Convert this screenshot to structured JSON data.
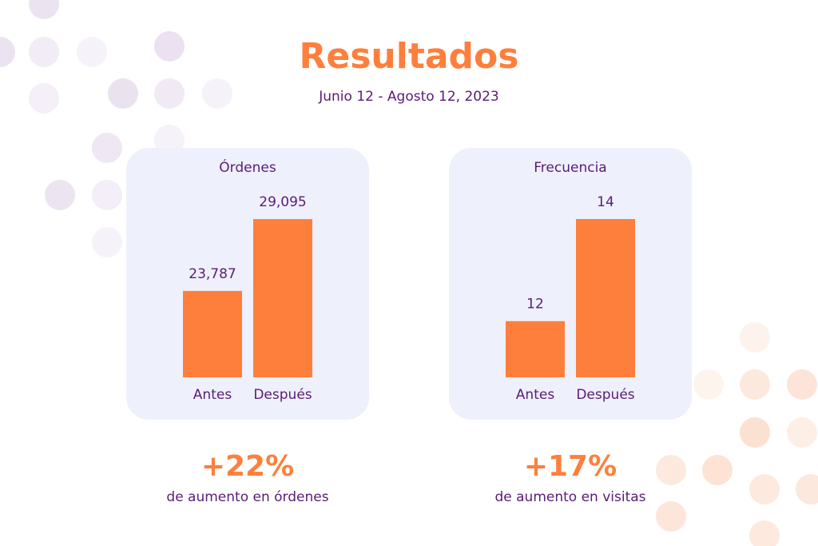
{
  "header": {
    "title": "Resultados",
    "subtitle": "Junio 12 - Agosto 12, 2023"
  },
  "chart_data": [
    {
      "type": "bar",
      "title": "Órdenes",
      "categories": [
        "Antes",
        "Después"
      ],
      "values": [
        23787,
        29095
      ],
      "value_labels": [
        "23,787",
        "29,095"
      ],
      "color": "#fe7f3c",
      "ylim": [
        17400,
        29100
      ]
    },
    {
      "type": "bar",
      "title": "Frecuencia",
      "categories": [
        "Antes",
        "Después"
      ],
      "values": [
        12,
        14
      ],
      "color": "#fe7f3c",
      "ylim": [
        10.9,
        14
      ]
    }
  ],
  "callouts": [
    {
      "value": "+22%",
      "text": "de aumento en órdenes"
    },
    {
      "value": "+17%",
      "text": "de aumento en visitas"
    }
  ]
}
